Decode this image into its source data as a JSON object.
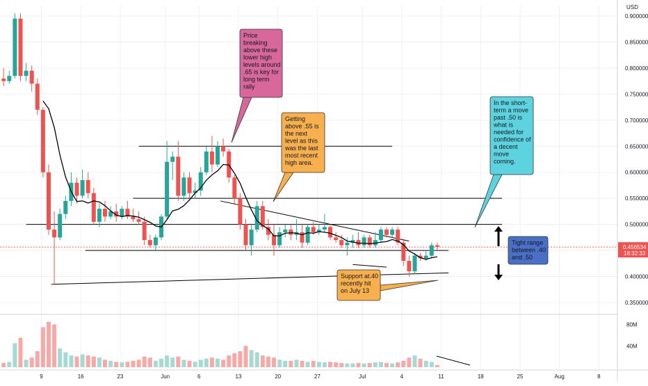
{
  "chart_data": {
    "type": "candlestick",
    "currency_label": "USD",
    "price_axis": {
      "ylim": [
        0.33,
        0.92
      ],
      "ticks": [
        "0.900000",
        "0.850000",
        "0.800000",
        "0.750000",
        "0.700000",
        "0.650000",
        "0.600000",
        "0.550000",
        "0.500000",
        "0.450000",
        "0.400000",
        "0.350000"
      ],
      "tick_values": [
        0.9,
        0.85,
        0.8,
        0.75,
        0.7,
        0.65,
        0.6,
        0.55,
        0.5,
        0.45,
        0.4,
        0.35
      ]
    },
    "volume_axis": {
      "ylim": [
        0,
        95
      ],
      "ticks": [
        "80M",
        "40M"
      ],
      "tick_values": [
        80,
        40
      ]
    },
    "time_axis": {
      "ticks": [
        "9",
        "16",
        "23",
        "Jun",
        "6",
        "13",
        "20",
        "27",
        "Jul",
        "4",
        "11",
        "18",
        "25",
        "Aug",
        "8"
      ],
      "tick_index": [
        6.7,
        13.7,
        20.7,
        28.7,
        34.7,
        41.7,
        48.7,
        55.7,
        63.7,
        70.7,
        77.7,
        84.7,
        91.7,
        98.7,
        105.7
      ]
    },
    "last_price": {
      "value": 0.456534,
      "label": "0.456534",
      "countdown": "18:32:33"
    },
    "candles": [
      {
        "o": 0.78,
        "h": 0.8,
        "l": 0.765,
        "c": 0.775,
        "v": 8
      },
      {
        "o": 0.775,
        "h": 0.795,
        "l": 0.77,
        "c": 0.785,
        "v": 10
      },
      {
        "o": 0.785,
        "h": 0.905,
        "l": 0.78,
        "c": 0.895,
        "v": 45
      },
      {
        "o": 0.895,
        "h": 0.905,
        "l": 0.775,
        "c": 0.785,
        "v": 55
      },
      {
        "o": 0.785,
        "h": 0.81,
        "l": 0.775,
        "c": 0.795,
        "v": 14
      },
      {
        "o": 0.795,
        "h": 0.805,
        "l": 0.755,
        "c": 0.77,
        "v": 18
      },
      {
        "o": 0.77,
        "h": 0.78,
        "l": 0.71,
        "c": 0.72,
        "v": 30
      },
      {
        "o": 0.72,
        "h": 0.725,
        "l": 0.59,
        "c": 0.6,
        "v": 75
      },
      {
        "o": 0.6,
        "h": 0.615,
        "l": 0.48,
        "c": 0.49,
        "v": 85
      },
      {
        "o": 0.49,
        "h": 0.525,
        "l": 0.385,
        "c": 0.475,
        "v": 80
      },
      {
        "o": 0.475,
        "h": 0.53,
        "l": 0.47,
        "c": 0.52,
        "v": 35
      },
      {
        "o": 0.52,
        "h": 0.555,
        "l": 0.51,
        "c": 0.545,
        "v": 28
      },
      {
        "o": 0.545,
        "h": 0.6,
        "l": 0.535,
        "c": 0.58,
        "v": 22
      },
      {
        "o": 0.58,
        "h": 0.59,
        "l": 0.54,
        "c": 0.555,
        "v": 20
      },
      {
        "o": 0.555,
        "h": 0.605,
        "l": 0.55,
        "c": 0.585,
        "v": 24
      },
      {
        "o": 0.585,
        "h": 0.6,
        "l": 0.55,
        "c": 0.56,
        "v": 22
      },
      {
        "o": 0.56,
        "h": 0.57,
        "l": 0.5,
        "c": 0.505,
        "v": 20
      },
      {
        "o": 0.505,
        "h": 0.54,
        "l": 0.495,
        "c": 0.53,
        "v": 18
      },
      {
        "o": 0.53,
        "h": 0.545,
        "l": 0.505,
        "c": 0.515,
        "v": 14
      },
      {
        "o": 0.515,
        "h": 0.535,
        "l": 0.51,
        "c": 0.525,
        "v": 12
      },
      {
        "o": 0.525,
        "h": 0.54,
        "l": 0.505,
        "c": 0.515,
        "v": 10
      },
      {
        "o": 0.515,
        "h": 0.535,
        "l": 0.51,
        "c": 0.53,
        "v": 9
      },
      {
        "o": 0.53,
        "h": 0.545,
        "l": 0.51,
        "c": 0.515,
        "v": 10
      },
      {
        "o": 0.515,
        "h": 0.53,
        "l": 0.505,
        "c": 0.51,
        "v": 12
      },
      {
        "o": 0.51,
        "h": 0.525,
        "l": 0.5,
        "c": 0.505,
        "v": 14
      },
      {
        "o": 0.505,
        "h": 0.515,
        "l": 0.46,
        "c": 0.47,
        "v": 20
      },
      {
        "o": 0.47,
        "h": 0.48,
        "l": 0.455,
        "c": 0.46,
        "v": 18
      },
      {
        "o": 0.46,
        "h": 0.48,
        "l": 0.45,
        "c": 0.475,
        "v": 12
      },
      {
        "o": 0.475,
        "h": 0.52,
        "l": 0.47,
        "c": 0.515,
        "v": 16
      },
      {
        "o": 0.515,
        "h": 0.66,
        "l": 0.51,
        "c": 0.62,
        "v": 22
      },
      {
        "o": 0.62,
        "h": 0.64,
        "l": 0.585,
        "c": 0.63,
        "v": 18
      },
      {
        "o": 0.63,
        "h": 0.66,
        "l": 0.545,
        "c": 0.555,
        "v": 20
      },
      {
        "o": 0.555,
        "h": 0.6,
        "l": 0.545,
        "c": 0.59,
        "v": 14
      },
      {
        "o": 0.59,
        "h": 0.6,
        "l": 0.545,
        "c": 0.56,
        "v": 12
      },
      {
        "o": 0.56,
        "h": 0.58,
        "l": 0.55,
        "c": 0.565,
        "v": 10
      },
      {
        "o": 0.565,
        "h": 0.61,
        "l": 0.555,
        "c": 0.6,
        "v": 14
      },
      {
        "o": 0.6,
        "h": 0.65,
        "l": 0.595,
        "c": 0.64,
        "v": 16
      },
      {
        "o": 0.64,
        "h": 0.67,
        "l": 0.6,
        "c": 0.615,
        "v": 18
      },
      {
        "o": 0.615,
        "h": 0.66,
        "l": 0.61,
        "c": 0.65,
        "v": 16
      },
      {
        "o": 0.65,
        "h": 0.665,
        "l": 0.63,
        "c": 0.64,
        "v": 14
      },
      {
        "o": 0.64,
        "h": 0.645,
        "l": 0.58,
        "c": 0.59,
        "v": 22
      },
      {
        "o": 0.59,
        "h": 0.595,
        "l": 0.54,
        "c": 0.55,
        "v": 26
      },
      {
        "o": 0.55,
        "h": 0.56,
        "l": 0.49,
        "c": 0.5,
        "v": 30
      },
      {
        "o": 0.5,
        "h": 0.51,
        "l": 0.45,
        "c": 0.46,
        "v": 40
      },
      {
        "o": 0.46,
        "h": 0.5,
        "l": 0.44,
        "c": 0.49,
        "v": 32
      },
      {
        "o": 0.49,
        "h": 0.545,
        "l": 0.485,
        "c": 0.535,
        "v": 28
      },
      {
        "o": 0.535,
        "h": 0.545,
        "l": 0.49,
        "c": 0.495,
        "v": 22
      },
      {
        "o": 0.495,
        "h": 0.51,
        "l": 0.47,
        "c": 0.48,
        "v": 20
      },
      {
        "o": 0.48,
        "h": 0.5,
        "l": 0.44,
        "c": 0.46,
        "v": 18
      },
      {
        "o": 0.46,
        "h": 0.495,
        "l": 0.455,
        "c": 0.485,
        "v": 14
      },
      {
        "o": 0.485,
        "h": 0.5,
        "l": 0.475,
        "c": 0.49,
        "v": 12
      },
      {
        "o": 0.49,
        "h": 0.5,
        "l": 0.47,
        "c": 0.48,
        "v": 12
      },
      {
        "o": 0.48,
        "h": 0.51,
        "l": 0.47,
        "c": 0.485,
        "v": 14
      },
      {
        "o": 0.485,
        "h": 0.5,
        "l": 0.455,
        "c": 0.465,
        "v": 12
      },
      {
        "o": 0.465,
        "h": 0.5,
        "l": 0.46,
        "c": 0.495,
        "v": 10
      },
      {
        "o": 0.495,
        "h": 0.505,
        "l": 0.48,
        "c": 0.485,
        "v": 12
      },
      {
        "o": 0.485,
        "h": 0.5,
        "l": 0.48,
        "c": 0.49,
        "v": 10
      },
      {
        "o": 0.49,
        "h": 0.52,
        "l": 0.485,
        "c": 0.495,
        "v": 9
      },
      {
        "o": 0.495,
        "h": 0.5,
        "l": 0.47,
        "c": 0.475,
        "v": 10
      },
      {
        "o": 0.475,
        "h": 0.485,
        "l": 0.465,
        "c": 0.47,
        "v": 9
      },
      {
        "o": 0.47,
        "h": 0.48,
        "l": 0.455,
        "c": 0.46,
        "v": 8
      },
      {
        "o": 0.46,
        "h": 0.475,
        "l": 0.44,
        "c": 0.465,
        "v": 7
      },
      {
        "o": 0.465,
        "h": 0.48,
        "l": 0.455,
        "c": 0.47,
        "v": 7
      },
      {
        "o": 0.47,
        "h": 0.485,
        "l": 0.455,
        "c": 0.46,
        "v": 8
      },
      {
        "o": 0.46,
        "h": 0.48,
        "l": 0.455,
        "c": 0.475,
        "v": 7
      },
      {
        "o": 0.475,
        "h": 0.48,
        "l": 0.455,
        "c": 0.46,
        "v": 8
      },
      {
        "o": 0.46,
        "h": 0.485,
        "l": 0.455,
        "c": 0.47,
        "v": 9
      },
      {
        "o": 0.47,
        "h": 0.495,
        "l": 0.465,
        "c": 0.49,
        "v": 10
      },
      {
        "o": 0.49,
        "h": 0.495,
        "l": 0.475,
        "c": 0.48,
        "v": 8
      },
      {
        "o": 0.48,
        "h": 0.495,
        "l": 0.475,
        "c": 0.49,
        "v": 7
      },
      {
        "o": 0.49,
        "h": 0.495,
        "l": 0.46,
        "c": 0.465,
        "v": 9
      },
      {
        "o": 0.465,
        "h": 0.47,
        "l": 0.42,
        "c": 0.43,
        "v": 12
      },
      {
        "o": 0.43,
        "h": 0.44,
        "l": 0.4,
        "c": 0.41,
        "v": 18
      },
      {
        "o": 0.41,
        "h": 0.445,
        "l": 0.405,
        "c": 0.44,
        "v": 22
      },
      {
        "o": 0.44,
        "h": 0.445,
        "l": 0.43,
        "c": 0.435,
        "v": 16
      },
      {
        "o": 0.435,
        "h": 0.45,
        "l": 0.43,
        "c": 0.44,
        "v": 12
      },
      {
        "o": 0.44,
        "h": 0.465,
        "l": 0.435,
        "c": 0.46,
        "v": 10
      },
      {
        "o": 0.46,
        "h": 0.465,
        "l": 0.45,
        "c": 0.457,
        "v": 4
      }
    ],
    "moving_average": [
      null,
      null,
      null,
      null,
      null,
      null,
      null,
      0.737,
      0.722,
      0.686,
      0.633,
      0.591,
      0.563,
      0.544,
      0.545,
      0.541,
      0.545,
      0.543,
      0.536,
      0.526,
      0.518,
      0.515,
      0.517,
      0.516,
      0.514,
      0.509,
      0.504,
      0.497,
      0.495,
      0.509,
      0.526,
      0.529,
      0.536,
      0.547,
      0.56,
      0.57,
      0.585,
      0.595,
      0.603,
      0.615,
      0.614,
      0.598,
      0.579,
      0.552,
      0.528,
      0.507,
      0.498,
      0.491,
      0.478,
      0.478,
      0.483,
      0.484,
      0.483,
      0.48,
      0.484,
      0.483,
      0.486,
      0.485,
      0.483,
      0.479,
      0.475,
      0.468,
      0.466,
      0.464,
      0.464,
      0.463,
      0.464,
      0.466,
      0.467,
      0.471,
      0.468,
      0.461,
      0.449,
      0.443,
      0.436,
      0.433,
      0.436,
      0.438
    ],
    "horizontal_levels": [
      {
        "price": 0.65,
        "from": 24,
        "to": 69
      },
      {
        "price": 0.55,
        "from": 23,
        "to": 88.5
      },
      {
        "price": 0.5,
        "from": 4,
        "to": 88.5
      },
      {
        "price": 0.45,
        "from": 14.5,
        "to": 79
      }
    ],
    "trendlines": [
      {
        "from": [
          38.5,
          0.545
        ],
        "to": [
          72,
          0.468
        ]
      },
      {
        "from": [
          8.5,
          0.385
        ],
        "to": [
          79,
          0.407
        ]
      },
      {
        "from": [
          62,
          0.423
        ],
        "to": [
          68,
          0.418
        ]
      }
    ],
    "annotations": [
      {
        "text": "Price breaking above these lower high levels around .65 is key for long term rally",
        "lines": [
          "Price",
          "breaking",
          "above these",
          "lower high",
          "levels around",
          ".65 is key for",
          "long term",
          "rally"
        ],
        "fill": "#d8679b"
      },
      {
        "text": "Getting above .55 is the next level as this was the last most recent high area.",
        "lines": [
          "Getting",
          "above .55 is",
          "the next",
          "level as this",
          "was the last",
          "most recent",
          "high area."
        ],
        "fill": "#f7b04d"
      },
      {
        "text": "In the short-term a move past .50 is what is needed for confidence of a decent move coming.",
        "lines": [
          "In the short-",
          "term a move",
          "past .50 is",
          "what is",
          "needed for",
          "confidence of",
          "a decent",
          "move",
          "coming."
        ],
        "fill": "#5ed3e0"
      },
      {
        "text": "Tight range between .40 and .50",
        "lines": [
          "Tight range",
          "between .40",
          "and .50"
        ],
        "fill": "#4a6fc4"
      },
      {
        "text": "Support at.40 recently hit on July 13",
        "lines": [
          "Support at.40",
          "recently hit",
          "on July 13"
        ],
        "fill": "#f7b04d"
      }
    ],
    "colors": {
      "up": "#26a69a",
      "down": "#ef5350",
      "up_volume": "#a6d9d3",
      "down_volume": "#f7a9a7",
      "ma": "#000000",
      "level": "#000000",
      "grid": "#eef0f3",
      "price_tag": "#ef5350"
    }
  }
}
